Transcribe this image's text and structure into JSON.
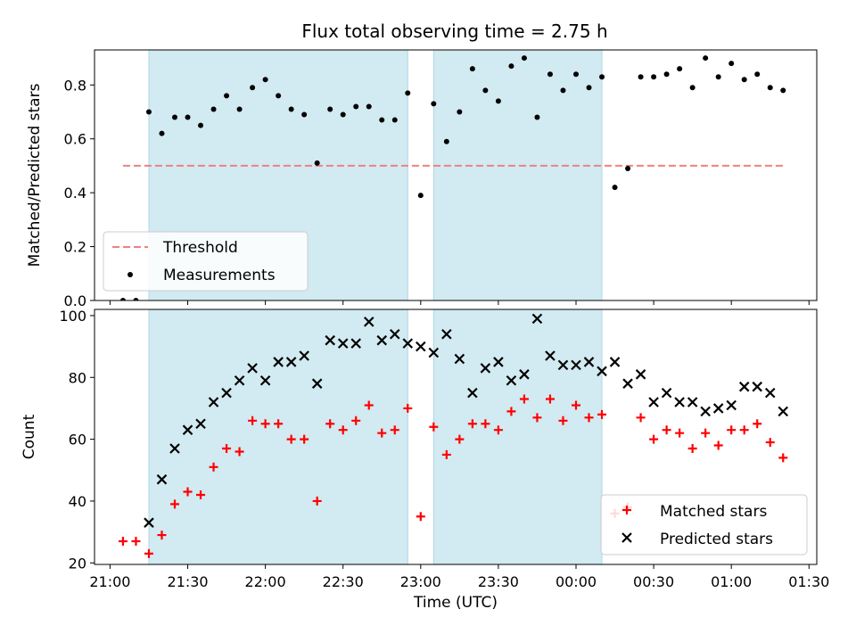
{
  "figure_title": "Flux total observing time = 2.75 h",
  "colors": {
    "shade": "#add8e6",
    "threshold": "#f08080",
    "measurement": "#000000",
    "matched": "#ff0000",
    "predicted": "#000000"
  },
  "chart_data": [
    {
      "type": "scatter",
      "title": "Flux total observing time = 2.75 h",
      "xlabel": "",
      "ylabel": "Matched/Predicted stars",
      "ylim": [
        0,
        0.93
      ],
      "yticks": [
        "0.0",
        "0.2",
        "0.4",
        "0.6",
        "0.8"
      ],
      "shaded_intervals": [
        [
          "21:15",
          "22:55"
        ],
        [
          "23:05",
          "00:10"
        ]
      ],
      "threshold": {
        "name": "Threshold",
        "y": 0.5,
        "x_start": "21:05",
        "x_end": "01:20"
      },
      "legend": {
        "position": "lower-left",
        "entries": [
          "Threshold",
          "Measurements"
        ]
      },
      "series": [
        {
          "name": "Measurements",
          "x": [
            "21:05",
            "21:10",
            "21:15",
            "21:20",
            "21:25",
            "21:30",
            "21:35",
            "21:40",
            "21:45",
            "21:50",
            "21:55",
            "22:00",
            "22:05",
            "22:10",
            "22:15",
            "22:20",
            "22:25",
            "22:30",
            "22:35",
            "22:40",
            "22:45",
            "22:50",
            "22:55",
            "23:00",
            "23:05",
            "23:10",
            "23:15",
            "23:20",
            "23:25",
            "23:30",
            "23:35",
            "23:40",
            "23:45",
            "23:50",
            "23:55",
            "00:00",
            "00:05",
            "00:10",
            "00:15",
            "00:20",
            "00:25",
            "00:30",
            "00:35",
            "00:40",
            "00:45",
            "00:50",
            "00:55",
            "01:00",
            "01:05",
            "01:10",
            "01:15",
            "01:20"
          ],
          "y": [
            0.0,
            0.0,
            0.7,
            0.62,
            0.68,
            0.68,
            0.65,
            0.71,
            0.76,
            0.71,
            0.79,
            0.82,
            0.76,
            0.71,
            0.69,
            0.51,
            0.71,
            0.69,
            0.72,
            0.72,
            0.67,
            0.67,
            0.77,
            0.39,
            0.73,
            0.59,
            0.7,
            0.86,
            0.78,
            0.74,
            0.87,
            0.9,
            0.68,
            0.84,
            0.78,
            0.84,
            0.79,
            0.83,
            0.42,
            0.49,
            0.83,
            0.83,
            0.84,
            0.86,
            0.79,
            0.9,
            0.83,
            0.88,
            0.82,
            0.84,
            0.79,
            0.78
          ]
        }
      ]
    },
    {
      "type": "scatter",
      "title": "",
      "xlabel": "Time (UTC)",
      "ylabel": "Count",
      "ylim": [
        19.5,
        102
      ],
      "yticks": [
        "20",
        "40",
        "60",
        "80",
        "100"
      ],
      "xticks": [
        "21:00",
        "21:30",
        "22:00",
        "22:30",
        "23:00",
        "23:30",
        "00:00",
        "00:30",
        "01:00",
        "01:30"
      ],
      "shaded_intervals": [
        [
          "21:15",
          "22:55"
        ],
        [
          "23:05",
          "00:10"
        ]
      ],
      "legend": {
        "position": "lower-right",
        "entries": [
          "Matched stars",
          "Predicted stars"
        ]
      },
      "series": [
        {
          "name": "Matched stars",
          "x": [
            "21:05",
            "21:10",
            "21:15",
            "21:20",
            "21:25",
            "21:30",
            "21:35",
            "21:40",
            "21:45",
            "21:50",
            "21:55",
            "22:00",
            "22:05",
            "22:10",
            "22:15",
            "22:20",
            "22:25",
            "22:30",
            "22:35",
            "22:40",
            "22:45",
            "22:50",
            "22:55",
            "23:00",
            "23:05",
            "23:10",
            "23:15",
            "23:20",
            "23:25",
            "23:30",
            "23:35",
            "23:40",
            "23:45",
            "23:50",
            "23:55",
            "00:00",
            "00:05",
            "00:10",
            "00:15",
            "00:20",
            "00:25",
            "00:30",
            "00:35",
            "00:40",
            "00:45",
            "00:50",
            "00:55",
            "01:00",
            "01:05",
            "01:10",
            "01:15",
            "01:20"
          ],
          "y": [
            27,
            27,
            23,
            29,
            39,
            43,
            42,
            51,
            57,
            56,
            66,
            65,
            65,
            60,
            60,
            40,
            65,
            63,
            66,
            71,
            62,
            63,
            70,
            35,
            64,
            55,
            60,
            65,
            65,
            63,
            69,
            73,
            67,
            73,
            66,
            71,
            67,
            68,
            36,
            38,
            67,
            60,
            63,
            62,
            57,
            62,
            58,
            63,
            63,
            65,
            59,
            54
          ]
        },
        {
          "name": "Predicted stars",
          "x": [
            "21:15",
            "21:20",
            "21:25",
            "21:30",
            "21:35",
            "21:40",
            "21:45",
            "21:50",
            "21:55",
            "22:00",
            "22:05",
            "22:10",
            "22:15",
            "22:20",
            "22:25",
            "22:30",
            "22:35",
            "22:40",
            "22:45",
            "22:50",
            "22:55",
            "23:00",
            "23:05",
            "23:10",
            "23:15",
            "23:20",
            "23:25",
            "23:30",
            "23:35",
            "23:40",
            "23:45",
            "23:50",
            "23:55",
            "00:00",
            "00:05",
            "00:10",
            "00:15",
            "00:20",
            "00:25",
            "00:30",
            "00:35",
            "00:40",
            "00:45",
            "00:50",
            "00:55",
            "01:00",
            "01:05",
            "01:10",
            "01:15",
            "01:20"
          ],
          "y": [
            33,
            47,
            57,
            63,
            65,
            72,
            75,
            79,
            83,
            79,
            85,
            85,
            87,
            78,
            92,
            91,
            91,
            98,
            92,
            94,
            91,
            90,
            88,
            94,
            86,
            75,
            83,
            85,
            79,
            81,
            99,
            87,
            84,
            84,
            85,
            82,
            85,
            78,
            81,
            72,
            75,
            72,
            72,
            69,
            70,
            71,
            77,
            77,
            75,
            69
          ]
        }
      ]
    }
  ]
}
